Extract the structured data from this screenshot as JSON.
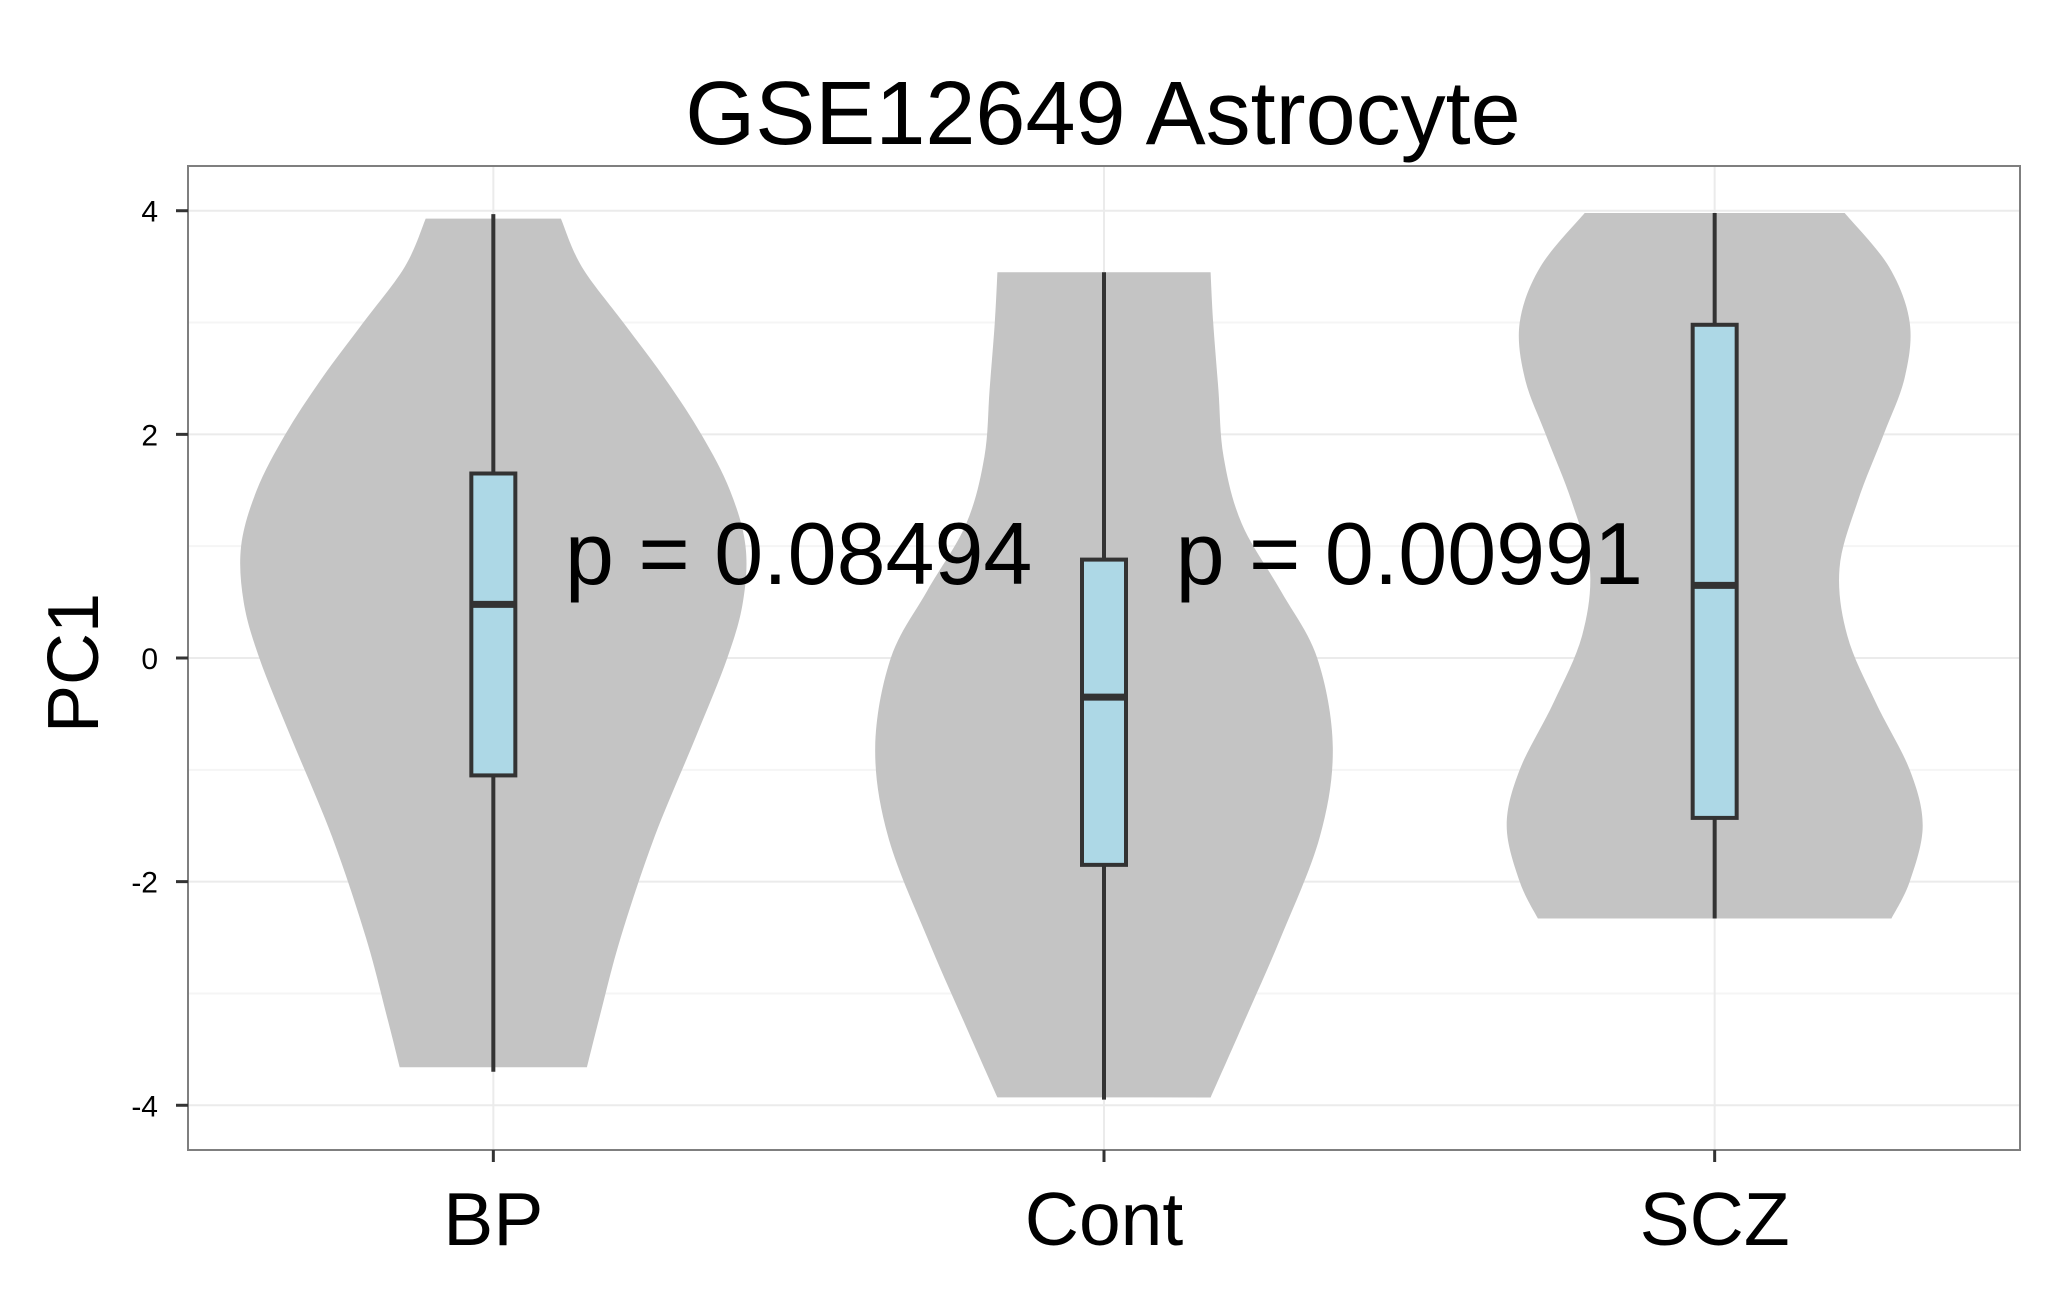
{
  "chart_data": {
    "type": "violin",
    "title": "GSE12649 Astrocyte",
    "xlabel": "",
    "ylabel": "PC1",
    "ylim": [
      -4.4,
      4.4
    ],
    "y_ticks": [
      -4,
      -2,
      0,
      2,
      4
    ],
    "y_tick_labels": [
      "-4",
      "-2",
      "0",
      "2",
      "4"
    ],
    "categories": [
      "BP",
      "Cont",
      "SCZ"
    ],
    "grid": true,
    "colors": {
      "violin_fill": "#c4c4c4",
      "box_fill": "#add8e6",
      "box_stroke": "#333333",
      "panel_border": "#7f7f7f",
      "grid_major": "#ebebeb",
      "grid_minor": "#f5f5f5"
    },
    "groups": [
      {
        "name": "BP",
        "violin": {
          "ymin": -3.66,
          "ymax": 3.93,
          "profile": [
            [
              -3.66,
              0.36
            ],
            [
              -3.2,
              0.41
            ],
            [
              -2.5,
              0.49
            ],
            [
              -1.6,
              0.62
            ],
            [
              -0.7,
              0.78
            ],
            [
              0.0,
              0.9
            ],
            [
              0.5,
              0.96
            ],
            [
              1.0,
              0.97
            ],
            [
              1.5,
              0.91
            ],
            [
              2.0,
              0.8
            ],
            [
              2.5,
              0.66
            ],
            [
              3.0,
              0.5
            ],
            [
              3.5,
              0.34
            ],
            [
              3.93,
              0.26
            ]
          ]
        },
        "box": {
          "whisker_low": -3.7,
          "q1": -1.05,
          "median": 0.48,
          "q3": 1.65,
          "whisker_high": 3.97
        }
      },
      {
        "name": "Cont",
        "violin": {
          "ymin": -3.93,
          "ymax": 3.45,
          "profile": [
            [
              -3.93,
              0.41
            ],
            [
              -3.3,
              0.53
            ],
            [
              -2.5,
              0.68
            ],
            [
              -1.6,
              0.83
            ],
            [
              -0.8,
              0.88
            ],
            [
              0.0,
              0.82
            ],
            [
              0.6,
              0.68
            ],
            [
              1.2,
              0.53
            ],
            [
              1.8,
              0.46
            ],
            [
              2.4,
              0.44
            ],
            [
              3.0,
              0.42
            ],
            [
              3.45,
              0.41
            ]
          ]
        },
        "box": {
          "whisker_low": -3.95,
          "q1": -1.85,
          "median": -0.35,
          "q3": 0.88,
          "whisker_high": 3.45
        }
      },
      {
        "name": "SCZ",
        "violin": {
          "ymin": -2.33,
          "ymax": 3.98,
          "profile": [
            [
              -2.33,
              0.68
            ],
            [
              -2.0,
              0.75
            ],
            [
              -1.5,
              0.8
            ],
            [
              -1.0,
              0.75
            ],
            [
              -0.4,
              0.62
            ],
            [
              0.2,
              0.51
            ],
            [
              0.8,
              0.48
            ],
            [
              1.4,
              0.55
            ],
            [
              2.0,
              0.65
            ],
            [
              2.5,
              0.73
            ],
            [
              3.0,
              0.75
            ],
            [
              3.5,
              0.67
            ],
            [
              3.98,
              0.5
            ]
          ]
        },
        "box": {
          "whisker_low": -2.33,
          "q1": -1.43,
          "median": 0.65,
          "q3": 2.98,
          "whisker_high": 3.98
        }
      }
    ],
    "annotations": [
      {
        "text": "p = 0.08494",
        "x_between": [
          "BP",
          "Cont"
        ],
        "y": 0.95
      },
      {
        "text": "p = 0.00991",
        "x_between": [
          "Cont",
          "SCZ"
        ],
        "y": 0.95
      }
    ]
  }
}
